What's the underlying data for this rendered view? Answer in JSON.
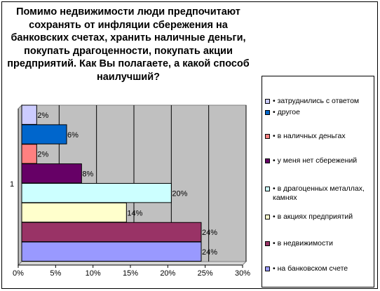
{
  "title": "Помимо недвижимости люди предпочитают сохранять от инфляции сбережения на банковских счетах, хранить наличные деньги, покупать драгоценности, покупать акции предприятий. Как Вы полагаете, а какой способ наилучший?",
  "chart_data": {
    "type": "bar",
    "orientation": "horizontal",
    "category_label": "1",
    "xlim": [
      0,
      30
    ],
    "x_ticks": [
      "0%",
      "5%",
      "10%",
      "15%",
      "20%",
      "25%",
      "30%"
    ],
    "grid": true,
    "legend_position": "right",
    "series": [
      {
        "name": "• затруднились с ответом",
        "value": 2,
        "label": "2%",
        "color": "#CCCCFF"
      },
      {
        "name": "• другое",
        "value": 6,
        "label": "6%",
        "color": "#0066CC"
      },
      {
        "name": "• в наличных деньгах",
        "value": 2,
        "label": "2%",
        "color": "#FF8080"
      },
      {
        "name": "• у меня нет сбережений",
        "value": 8,
        "label": "8%",
        "color": "#660066"
      },
      {
        "name": "• в драгоценных металлах, камнях",
        "value": 20,
        "label": "20%",
        "color": "#CCFFFF"
      },
      {
        "name": "• в акциях предприятий",
        "value": 14,
        "label": "14%",
        "color": "#FFFFCC"
      },
      {
        "name": "• в недвижимости",
        "value": 24,
        "label": "24%",
        "color": "#993366"
      },
      {
        "name": "• на банковском счете",
        "value": 24,
        "label": "24%",
        "color": "#9999FF"
      }
    ]
  }
}
